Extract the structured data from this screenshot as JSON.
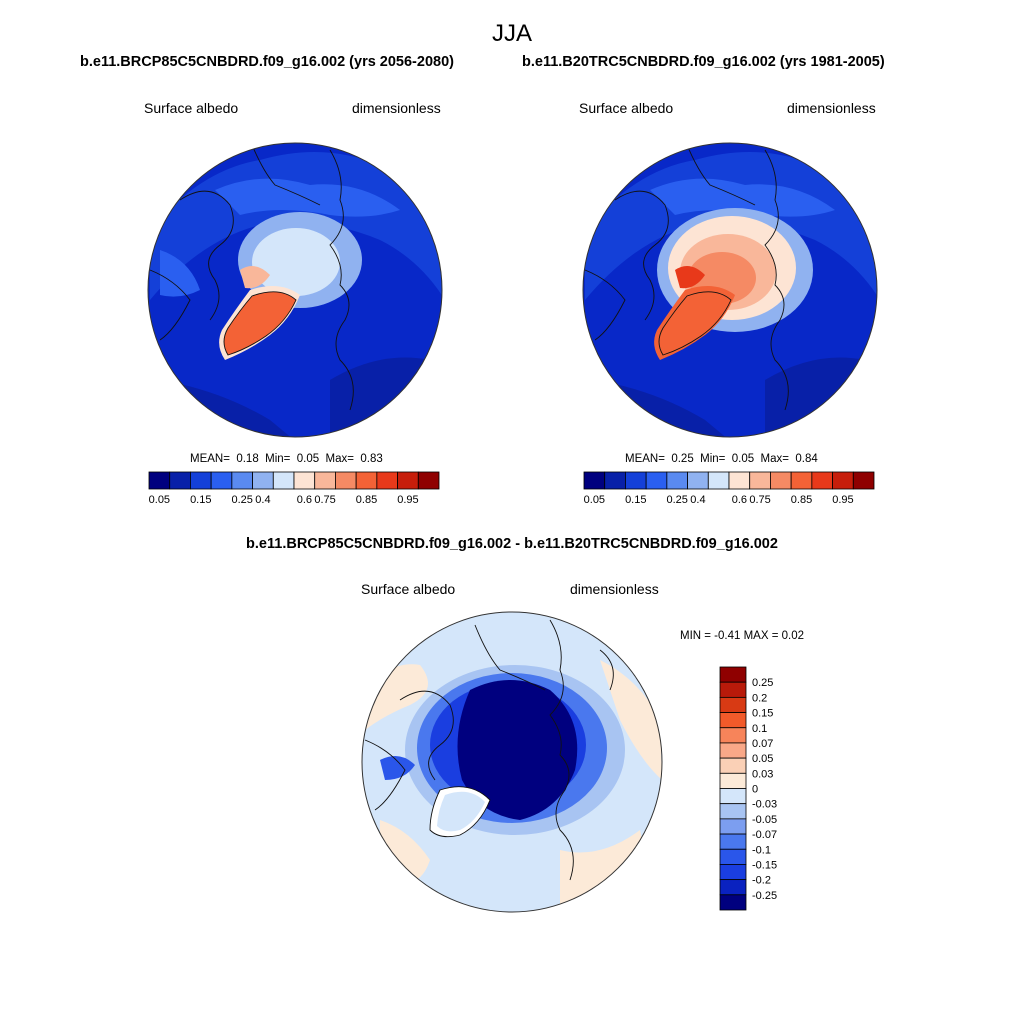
{
  "figure": {
    "season": "JJA",
    "panels": [
      {
        "case": "b.e11.BRCP85C5CNBDRD.f09_g16.002 (yrs 2056-2080)",
        "variable": "Surface albedo",
        "units": "dimensionless",
        "stats": {
          "mean_label": "MEAN=",
          "mean": "0.18",
          "min_label": "Min=",
          "min": "0.05",
          "max_label": "Max=",
          "max": "0.83"
        }
      },
      {
        "case": "b.e11.B20TRC5CNBDRD.f09_g16.002 (yrs 1981-2005)",
        "variable": "Surface albedo",
        "units": "dimensionless",
        "stats": {
          "mean_label": "MEAN=",
          "mean": "0.25",
          "min_label": "Min=",
          "min": "0.05",
          "max_label": "Max=",
          "max": "0.84"
        }
      }
    ],
    "difference": {
      "title": "b.e11.BRCP85C5CNBDRD.f09_g16.002 - b.e11.B20TRC5CNBDRD.f09_g16.002",
      "variable": "Surface albedo",
      "units": "dimensionless",
      "minmax": "MIN =  -0.41 MAX =   0.02"
    }
  },
  "colorbars": {
    "absolute": {
      "colors": [
        "#00007f",
        "#0820a8",
        "#1440d8",
        "#2a5ff0",
        "#5a8af0",
        "#90b2f0",
        "#d4e6fa",
        "#fde4d4",
        "#f9b79a",
        "#f58a64",
        "#f36236",
        "#e8391a",
        "#c71e0b",
        "#8f0000"
      ],
      "labels": [
        "0.05",
        "0.15",
        "0.25",
        "0.4",
        "0.6",
        "0.75",
        "0.85",
        "0.95"
      ]
    },
    "difference": {
      "colors": [
        "#8f0000",
        "#b81a0a",
        "#d83a14",
        "#f25a2a",
        "#f7845a",
        "#f9a888",
        "#fad0b6",
        "#fcead8",
        "#d4e6fa",
        "#a8c4f2",
        "#7c9ef0",
        "#4a78ee",
        "#2a56ea",
        "#1a3ee0",
        "#0a22c0",
        "#00007f"
      ],
      "labels": [
        "0.25",
        "0.2",
        "0.15",
        "0.1",
        "0.07",
        "0.05",
        "0.03",
        "0",
        "-0.03",
        "-0.05",
        "-0.07",
        "-0.1",
        "-0.15",
        "-0.2",
        "-0.25"
      ]
    }
  }
}
